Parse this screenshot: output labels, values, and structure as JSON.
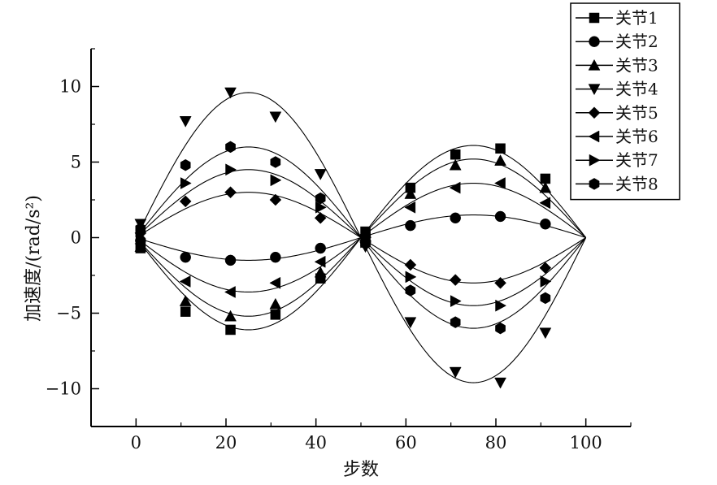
{
  "chart_data": {
    "type": "line",
    "xlabel": "步数",
    "ylabel": "加速度/(rad/s²)",
    "xlim": [
      -10,
      110
    ],
    "ylim": [
      -12.5,
      12.5
    ],
    "xticks": [
      0,
      20,
      40,
      60,
      80,
      100
    ],
    "yticks": [
      -10,
      -5,
      0,
      5,
      10
    ],
    "xtick_labels": [
      "0",
      "20",
      "40",
      "60",
      "80",
      "100"
    ],
    "ytick_labels": [
      "−10",
      "−5",
      "0",
      "5",
      "10"
    ],
    "grid": false,
    "legend_position": "top-right",
    "x": [
      1,
      11,
      21,
      31,
      41,
      51,
      61,
      71,
      81,
      91
    ],
    "series": [
      {
        "name": "关节1",
        "marker": "square",
        "amplitude": -6.1,
        "values": [
          -0.7,
          -4.9,
          -6.1,
          -5.1,
          -2.7,
          0.4,
          3.3,
          5.5,
          5.9,
          3.9
        ]
      },
      {
        "name": "关节2",
        "marker": "circle",
        "amplitude": -1.5,
        "values": [
          -0.2,
          -1.3,
          -1.5,
          -1.3,
          -0.7,
          0.1,
          0.8,
          1.3,
          1.4,
          0.9
        ]
      },
      {
        "name": "关节3",
        "marker": "triangle-up",
        "amplitude": -5.2,
        "values": [
          -0.6,
          -4.2,
          -5.2,
          -4.4,
          -2.3,
          0.3,
          2.9,
          4.8,
          5.1,
          3.3
        ]
      },
      {
        "name": "关节4",
        "marker": "triangle-down",
        "amplitude": 9.6,
        "values": [
          0.9,
          7.7,
          9.6,
          8.0,
          4.2,
          -0.6,
          -5.6,
          -8.9,
          -9.6,
          -6.3
        ]
      },
      {
        "name": "关节5",
        "marker": "diamond",
        "amplitude": 3.0,
        "values": [
          0.3,
          2.4,
          3.0,
          2.5,
          1.3,
          -0.2,
          -1.8,
          -2.8,
          -3.0,
          -2.0
        ]
      },
      {
        "name": "关节6",
        "marker": "triangle-left",
        "amplitude": -3.6,
        "values": [
          -0.4,
          -2.9,
          -3.6,
          -3.0,
          -1.6,
          0.2,
          2.0,
          3.3,
          3.6,
          2.3
        ]
      },
      {
        "name": "关节7",
        "marker": "triangle-right",
        "amplitude": 4.5,
        "values": [
          0.4,
          3.6,
          4.5,
          3.8,
          2.0,
          -0.3,
          -2.6,
          -4.2,
          -4.5,
          -2.9
        ]
      },
      {
        "name": "关节8",
        "marker": "hexagon",
        "amplitude": 6.0,
        "values": [
          0.6,
          4.8,
          6.0,
          5.0,
          2.6,
          -0.4,
          -3.5,
          -5.6,
          -6.0,
          -4.0
        ]
      }
    ]
  }
}
